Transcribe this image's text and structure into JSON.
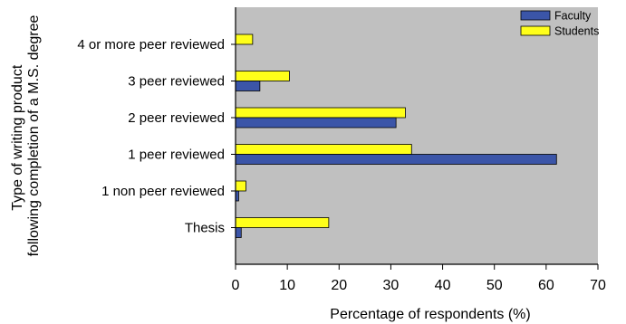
{
  "chart_data": {
    "type": "bar",
    "orientation": "horizontal",
    "categories": [
      "4 or more peer reviewed",
      "3 peer reviewed",
      "2 peer reviewed",
      "1 peer reviewed",
      "1 non peer reviewed",
      "Thesis"
    ],
    "series": [
      {
        "name": "Faculty",
        "color": "#3b55a8",
        "values": [
          0,
          4.7,
          31,
          62,
          0.6,
          1.1
        ]
      },
      {
        "name": "Students",
        "color": "#ffff1a",
        "values": [
          3.3,
          10.4,
          32.8,
          34,
          2,
          18
        ]
      }
    ],
    "xlabel": "Percentage of respondents (%)",
    "ylabel_lines": [
      "Type of writing product",
      "following completion of a M.S. degree"
    ],
    "xlim": [
      0,
      70
    ],
    "xticks": [
      0,
      10,
      20,
      30,
      40,
      50,
      60,
      70
    ],
    "legend_position": "top-right",
    "grid": false,
    "plot_background": "#c0c0c0"
  }
}
